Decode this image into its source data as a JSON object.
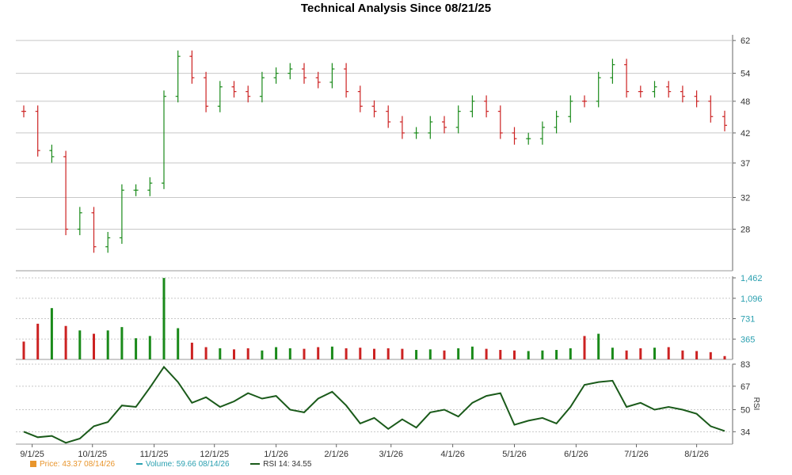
{
  "title": "Technical Analysis Since 08/21/25",
  "colors": {
    "up": "#1a8a1a",
    "down": "#cc2222",
    "rsi": "#1a5a1a",
    "price_axis": "#333333",
    "volume_axis": "#2aa0b0",
    "grid": "#c8c8c8"
  },
  "legend": {
    "price": "Price: 43.37  08/14/26",
    "volume": "Volume: 59.66  08/14/26",
    "rsi": "RSI 14: 34.55"
  },
  "chart_data": [
    {
      "type": "candlestick",
      "panel": "price",
      "title": "Technical Analysis Since 08/21/25",
      "scale": "log",
      "ylim": [
        23.5,
        63.5
      ],
      "yticks": [
        "62",
        "54",
        "48",
        "42",
        "37",
        "32",
        "28"
      ],
      "x": [
        "8/28/25",
        "9/4/25",
        "9/11/25",
        "9/18/25",
        "9/25/25",
        "10/2/25",
        "10/9/25",
        "10/16/25",
        "10/23/25",
        "10/30/25",
        "11/6/25",
        "11/13/25",
        "11/20/25",
        "11/27/25",
        "12/4/25",
        "12/11/25",
        "12/18/25",
        "12/25/25",
        "1/1/26",
        "1/8/26",
        "1/15/26",
        "1/22/26",
        "1/29/26",
        "2/5/26",
        "2/12/26",
        "2/19/26",
        "2/26/26",
        "3/5/26",
        "3/12/26",
        "3/19/26",
        "3/26/26",
        "4/2/26",
        "4/9/26",
        "4/16/26",
        "4/23/26",
        "4/30/26",
        "5/7/26",
        "5/14/26",
        "5/21/26",
        "5/28/26",
        "6/4/26",
        "6/11/26",
        "6/18/26",
        "6/25/26",
        "7/2/26",
        "7/9/26",
        "7/16/26",
        "7/23/26",
        "7/30/26",
        "8/6/26",
        "8/13/26"
      ],
      "values": [
        46,
        39,
        38,
        28,
        30,
        26,
        27,
        33,
        33,
        34,
        49,
        58,
        53,
        47,
        51,
        50,
        49,
        53,
        54,
        55,
        53,
        52,
        55,
        50,
        47,
        46,
        44,
        42,
        42,
        44,
        43,
        46,
        48,
        46,
        42,
        41,
        41,
        43,
        45,
        48,
        48,
        53,
        56,
        50,
        50,
        51,
        50,
        49,
        48,
        45,
        43.37
      ],
      "change": [
        "down",
        "down",
        "up",
        "down",
        "up",
        "down",
        "up",
        "up",
        "up",
        "up",
        "up",
        "up",
        "down",
        "down",
        "up",
        "down",
        "down",
        "up",
        "up",
        "up",
        "down",
        "down",
        "up",
        "down",
        "down",
        "down",
        "down",
        "down",
        "up",
        "up",
        "down",
        "up",
        "up",
        "down",
        "down",
        "down",
        "up",
        "up",
        "up",
        "up",
        "down",
        "up",
        "up",
        "down",
        "down",
        "up",
        "down",
        "down",
        "down",
        "down",
        "down"
      ]
    },
    {
      "type": "bar",
      "panel": "volume",
      "ylim": [
        0,
        1462
      ],
      "yticks": [
        "1,462",
        "1,096",
        "731",
        "365"
      ],
      "x": [
        "8/28/25",
        "9/4/25",
        "9/11/25",
        "9/18/25",
        "9/25/25",
        "10/2/25",
        "10/9/25",
        "10/16/25",
        "10/23/25",
        "10/30/25",
        "11/6/25",
        "11/13/25",
        "11/20/25",
        "11/27/25",
        "12/4/25",
        "12/11/25",
        "12/18/25",
        "12/25/25",
        "1/1/26",
        "1/8/26",
        "1/15/26",
        "1/22/26",
        "1/29/26",
        "2/5/26",
        "2/12/26",
        "2/19/26",
        "2/26/26",
        "3/5/26",
        "3/12/26",
        "3/19/26",
        "3/26/26",
        "4/2/26",
        "4/9/26",
        "4/16/26",
        "4/23/26",
        "4/30/26",
        "5/7/26",
        "5/14/26",
        "5/21/26",
        "5/28/26",
        "6/4/26",
        "6/11/26",
        "6/18/26",
        "6/25/26",
        "7/2/26",
        "7/9/26",
        "7/16/26",
        "7/23/26",
        "7/30/26",
        "8/6/26",
        "8/13/26"
      ],
      "values": [
        320,
        640,
        920,
        600,
        520,
        460,
        520,
        580,
        380,
        420,
        1460,
        560,
        300,
        220,
        200,
        180,
        200,
        160,
        220,
        200,
        190,
        220,
        230,
        200,
        210,
        190,
        200,
        190,
        170,
        180,
        160,
        200,
        230,
        190,
        170,
        160,
        150,
        160,
        170,
        200,
        420,
        460,
        210,
        160,
        200,
        210,
        220,
        160,
        150,
        130,
        60
      ]
    },
    {
      "type": "line",
      "panel": "rsi",
      "ylim": [
        25,
        83
      ],
      "yticks": [
        "83",
        "67",
        "50",
        "34"
      ],
      "ylabel": "RSI",
      "x": [
        "8/28/25",
        "9/4/25",
        "9/11/25",
        "9/18/25",
        "9/25/25",
        "10/2/25",
        "10/9/25",
        "10/16/25",
        "10/23/25",
        "10/30/25",
        "11/6/25",
        "11/13/25",
        "11/20/25",
        "11/27/25",
        "12/4/25",
        "12/11/25",
        "12/18/25",
        "12/25/25",
        "1/1/26",
        "1/8/26",
        "1/15/26",
        "1/22/26",
        "1/29/26",
        "2/5/26",
        "2/12/26",
        "2/19/26",
        "2/26/26",
        "3/5/26",
        "3/12/26",
        "3/19/26",
        "3/26/26",
        "4/2/26",
        "4/9/26",
        "4/16/26",
        "4/23/26",
        "4/30/26",
        "5/7/26",
        "5/14/26",
        "5/21/26",
        "5/28/26",
        "6/4/26",
        "6/11/26",
        "6/18/26",
        "6/25/26",
        "7/2/26",
        "7/9/26",
        "7/16/26",
        "7/23/26",
        "7/30/26",
        "8/6/26",
        "8/13/26"
      ],
      "values": [
        34,
        30,
        31,
        26,
        29,
        38,
        41,
        53,
        52,
        66,
        81,
        70,
        55,
        59,
        52,
        56,
        62,
        58,
        60,
        50,
        48,
        58,
        63,
        53,
        40,
        44,
        36,
        43,
        37,
        48,
        50,
        45,
        55,
        60,
        62,
        39,
        42,
        44,
        40,
        52,
        68,
        70,
        71,
        52,
        55,
        50,
        52,
        50,
        47,
        38,
        34.55
      ],
      "xticks": [
        "9/1/25",
        "10/1/25",
        "11/1/25",
        "12/1/25",
        "1/1/26",
        "2/1/26",
        "3/1/26",
        "4/1/26",
        "5/1/26",
        "6/1/26",
        "7/1/26",
        "8/1/26"
      ]
    }
  ]
}
